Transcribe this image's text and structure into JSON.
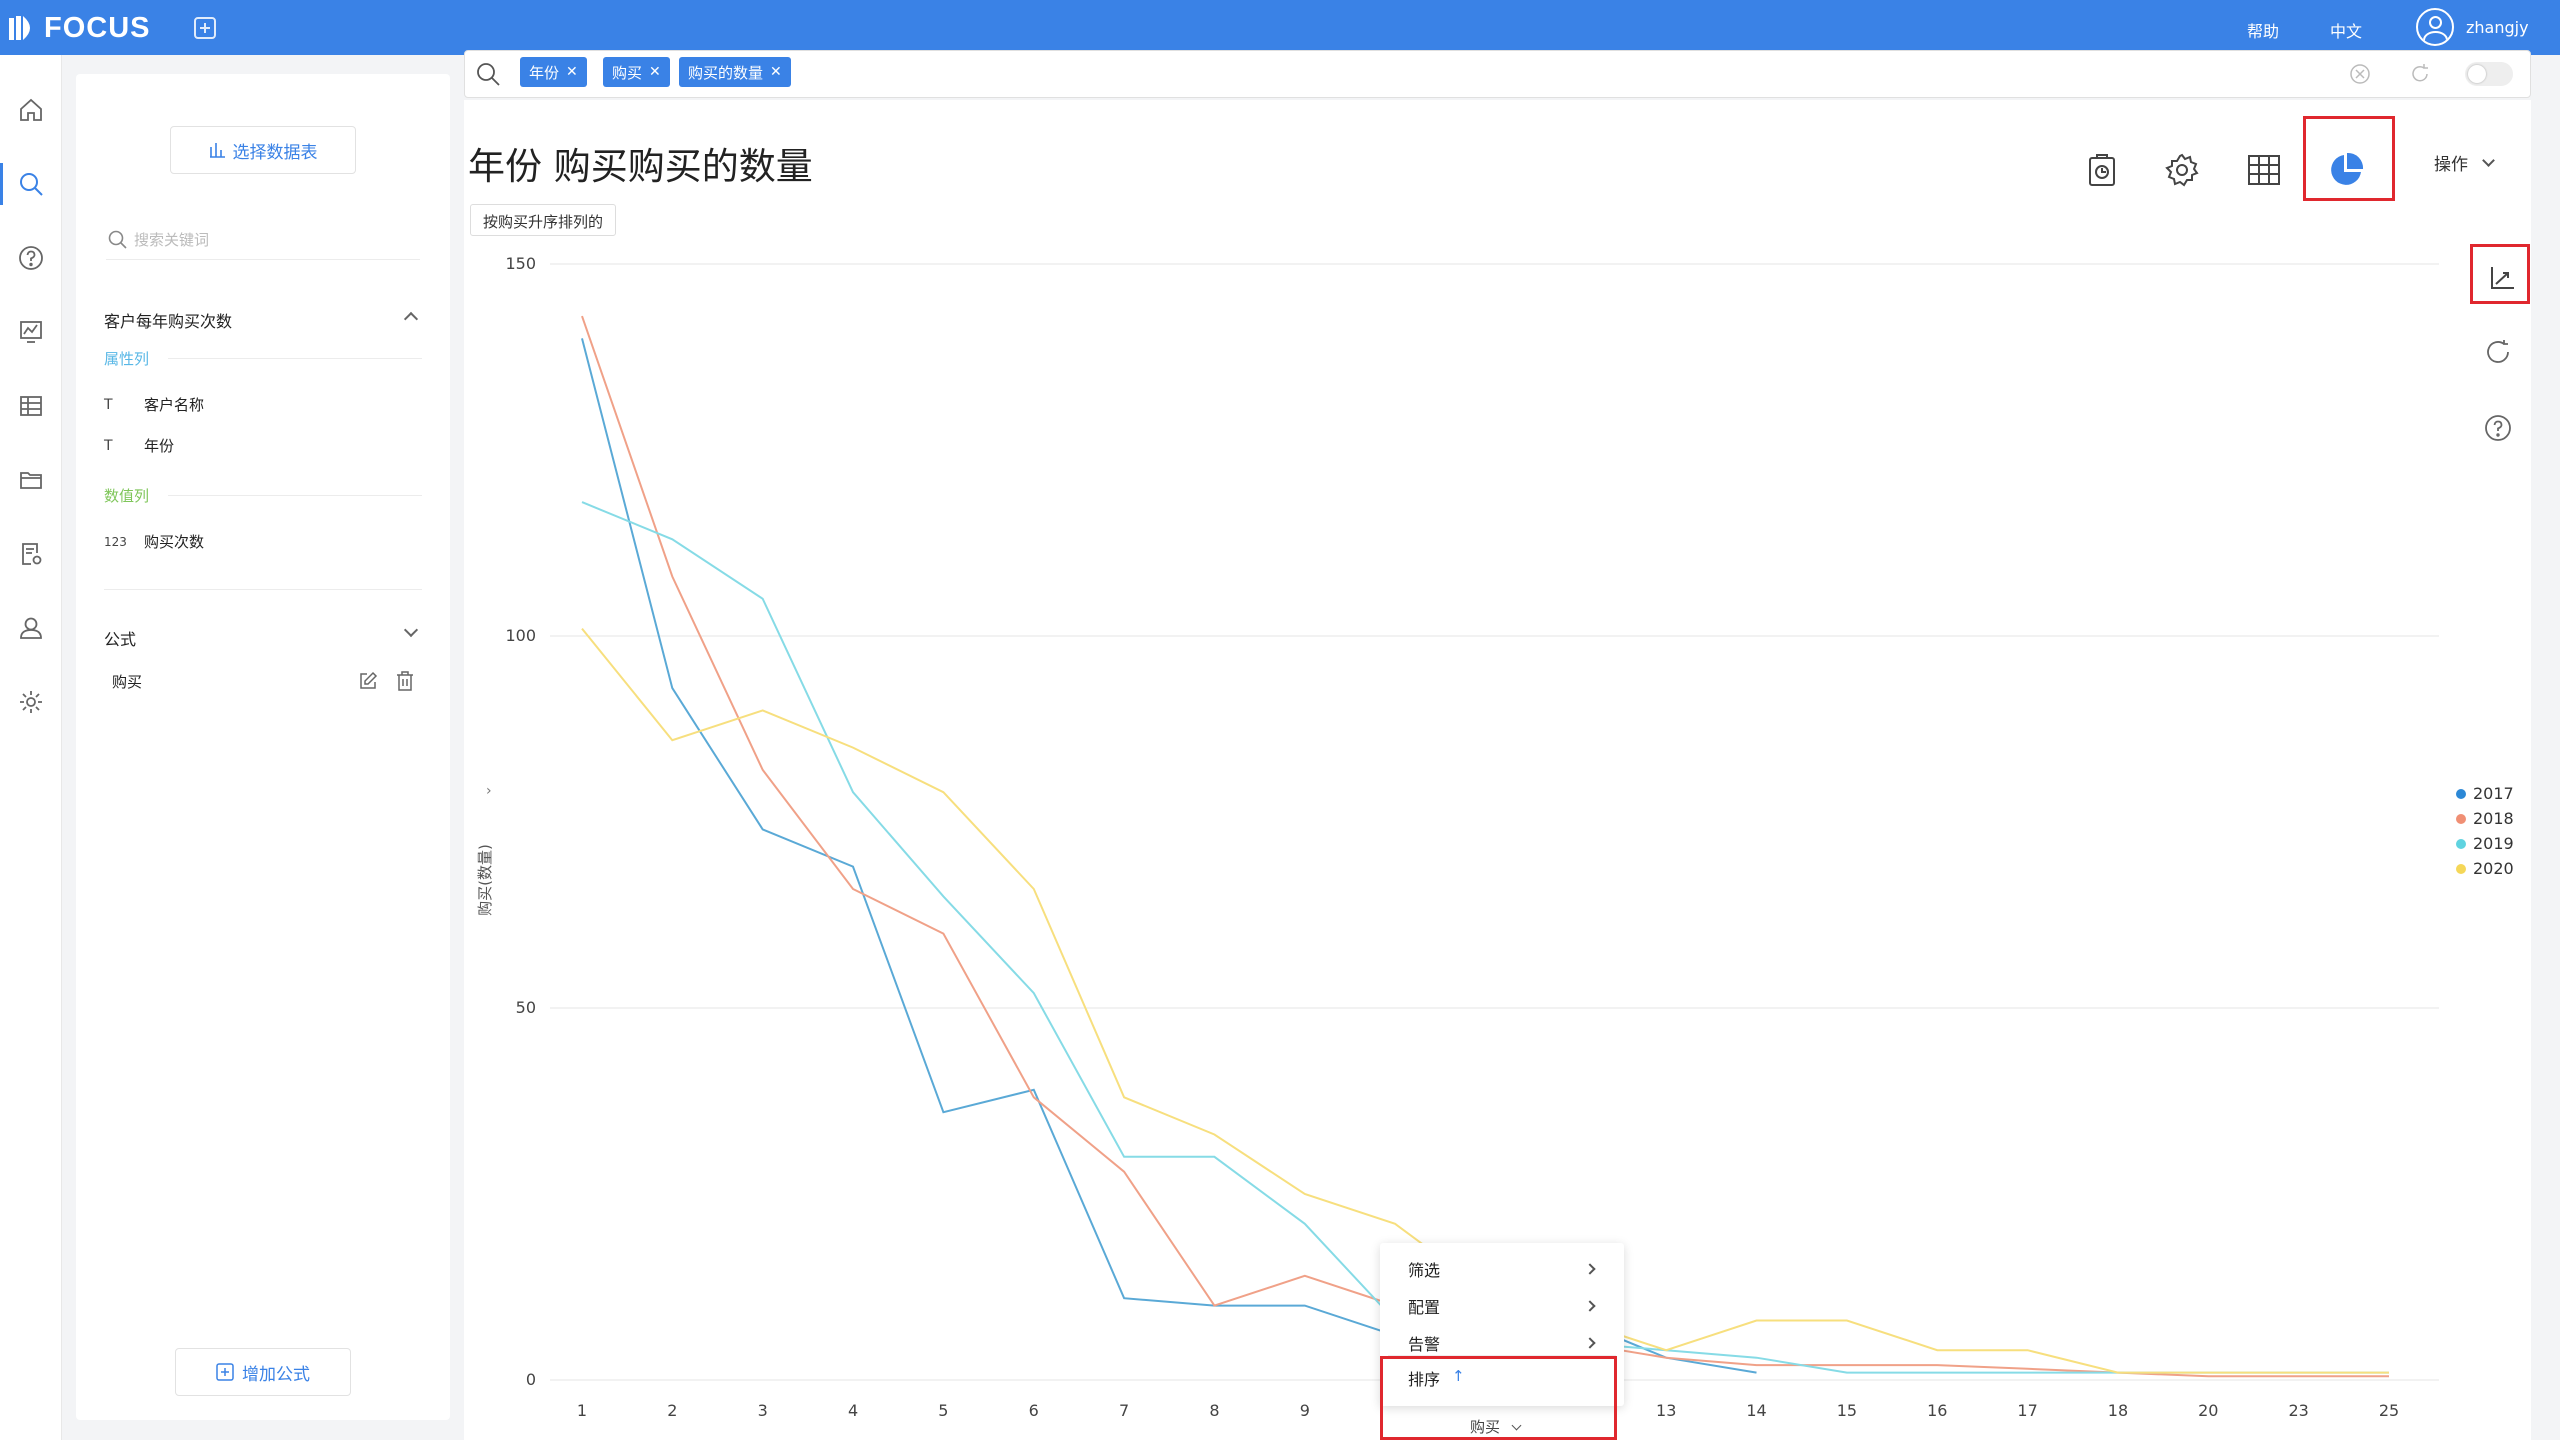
{
  "app": {
    "logo": "FOCUS",
    "help": "帮助",
    "lang": "中文",
    "user": "zhangjy"
  },
  "nav": [
    "home-icon",
    "search-icon",
    "help-icon",
    "dashboard-icon",
    "table-icon",
    "folder-icon",
    "report-settings-icon",
    "user-icon",
    "settings-icon"
  ],
  "sidebar": {
    "select_table": "选择数据表",
    "search_placeholder": "搜索关键词",
    "dataset": "客户每年购买次数",
    "attribute_group": "属性列",
    "attributes": [
      {
        "type": "T",
        "name": "客户名称"
      },
      {
        "type": "T",
        "name": "年份"
      }
    ],
    "measure_group": "数值列",
    "measures": [
      {
        "type": "123",
        "name": "购买次数"
      }
    ],
    "formula_title": "公式",
    "formulas": [
      "购买"
    ],
    "add_formula": "增加公式"
  },
  "search": {
    "tokens": [
      "年份",
      "购买",
      "购买的数量"
    ]
  },
  "answer": {
    "title": "年份 购买购买的数量",
    "sort_hint": "按购买升序排列的",
    "ops_label": "操作"
  },
  "colors": {
    "accent": "#3a82e6",
    "highlight": "#e0282e",
    "s2017": "#5aa9d6",
    "s2018": "#f0a188",
    "s2019": "#86dbe6",
    "s2020": "#f7df7e"
  },
  "chart_data": {
    "type": "line",
    "x": [
      "1",
      "2",
      "3",
      "4",
      "5",
      "6",
      "7",
      "8",
      "9",
      "10",
      "11",
      "12",
      "13",
      "14",
      "15",
      "16",
      "17",
      "18",
      "20",
      "23",
      "25"
    ],
    "x_visible_labels": [
      "1",
      "2",
      "3",
      "4",
      "5",
      "6",
      "7",
      "8",
      "9",
      "13",
      "14",
      "15",
      "16",
      "17",
      "18",
      "20",
      "23",
      "25"
    ],
    "ylabel": "购买(数量)",
    "xlabel": "购买",
    "ylim": [
      0,
      150
    ],
    "yticks": [
      0,
      50,
      100,
      150
    ],
    "legend_position": "right",
    "series": [
      {
        "name": "2017",
        "values": [
          140,
          93,
          74,
          69,
          36,
          39,
          11,
          10,
          10,
          6,
          10,
          8,
          3,
          1,
          null,
          null,
          null,
          null,
          null,
          null,
          null
        ]
      },
      {
        "name": "2018",
        "values": [
          143,
          108,
          82,
          66,
          60,
          38,
          28,
          10,
          14,
          10,
          8,
          5,
          3,
          2,
          2,
          2,
          1.5,
          1,
          0.5,
          0.5,
          0.5
        ]
      },
      {
        "name": "2019",
        "values": [
          118,
          113,
          105,
          79,
          65,
          52,
          30,
          30,
          21,
          8,
          7,
          5,
          4,
          3,
          1,
          1,
          1,
          1,
          1,
          1,
          1
        ]
      },
      {
        "name": "2020",
        "values": [
          101,
          86,
          90,
          85,
          79,
          66,
          38,
          33,
          25,
          21,
          12,
          8,
          4,
          8,
          8,
          4,
          4,
          1,
          1,
          1,
          1
        ]
      }
    ]
  },
  "context_menu": {
    "items": [
      "筛选",
      "配置",
      "告警",
      "排序"
    ],
    "sort_arrow": "↑"
  },
  "axis_dropdown": "购买"
}
